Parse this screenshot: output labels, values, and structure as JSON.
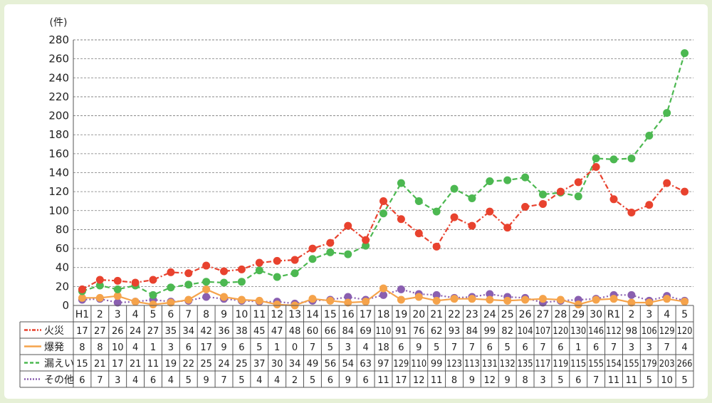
{
  "chart_data": {
    "type": "line",
    "yunit": "(件)",
    "ylim": [
      0,
      280
    ],
    "yticks": [
      0,
      20,
      40,
      60,
      80,
      100,
      120,
      140,
      160,
      180,
      200,
      220,
      240,
      260,
      280
    ],
    "grid": true,
    "categories": [
      "H1",
      "2",
      "3",
      "4",
      "5",
      "6",
      "7",
      "8",
      "9",
      "10",
      "11",
      "12",
      "13",
      "14",
      "15",
      "16",
      "17",
      "18",
      "19",
      "20",
      "21",
      "22",
      "23",
      "24",
      "25",
      "26",
      "27",
      "28",
      "29",
      "30",
      "R1",
      "2",
      "3",
      "4",
      "5"
    ],
    "series": [
      {
        "name": "火災",
        "color": "#e8422e",
        "style": "dash-dot",
        "values": [
          17,
          27,
          26,
          24,
          27,
          35,
          34,
          42,
          36,
          38,
          45,
          47,
          48,
          60,
          66,
          84,
          69,
          110,
          91,
          76,
          62,
          93,
          84,
          99,
          82,
          104,
          107,
          120,
          130,
          146,
          112,
          98,
          106,
          129,
          120
        ]
      },
      {
        "name": "爆発",
        "color": "#f5a34b",
        "style": "solid",
        "values": [
          8,
          8,
          10,
          4,
          1,
          3,
          6,
          17,
          9,
          6,
          5,
          1,
          0,
          7,
          5,
          3,
          4,
          18,
          6,
          9,
          5,
          7,
          7,
          6,
          5,
          6,
          7,
          6,
          1,
          6,
          7,
          3,
          3,
          7,
          4
        ]
      },
      {
        "name": "漏えい",
        "color": "#4cb851",
        "style": "dash",
        "values": [
          15,
          21,
          17,
          21,
          11,
          19,
          22,
          25,
          24,
          25,
          37,
          30,
          34,
          49,
          56,
          54,
          63,
          97,
          129,
          110,
          99,
          123,
          113,
          131,
          132,
          135,
          117,
          119,
          115,
          155,
          154,
          155,
          179,
          203,
          266
        ]
      },
      {
        "name": "その他",
        "color": "#8a5fb0",
        "style": "dot",
        "values": [
          6,
          7,
          3,
          4,
          6,
          4,
          5,
          9,
          7,
          5,
          4,
          4,
          2,
          5,
          6,
          9,
          6,
          11,
          17,
          12,
          11,
          8,
          9,
          12,
          9,
          8,
          3,
          5,
          6,
          7,
          11,
          11,
          5,
          10,
          5
        ]
      }
    ]
  }
}
